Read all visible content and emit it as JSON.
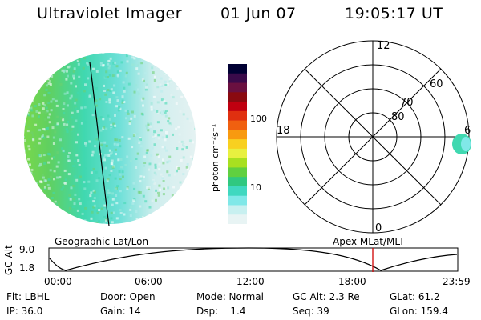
{
  "header": {
    "title": "Ultraviolet Imager",
    "date": "01 Jun 07",
    "time": "19:05:17 UT"
  },
  "colorbar": {
    "unit_label": "photon cm⁻²s⁻¹",
    "ticks": [
      "100",
      "10"
    ],
    "colors": [
      "#000033",
      "#3a0a4a",
      "#6a1040",
      "#8a0a10",
      "#c00010",
      "#e03010",
      "#f06010",
      "#f89a10",
      "#f8d020",
      "#e8f040",
      "#a8e020",
      "#60d040",
      "#30c880",
      "#40d8c0",
      "#80e8e8",
      "#c8f0f0",
      "#e8f4f4"
    ]
  },
  "polar_plot": {
    "lat_labels": [
      "80",
      "70",
      "60"
    ],
    "mlt_labels": [
      "12",
      "18",
      "6",
      "0"
    ]
  },
  "timeline": {
    "left_title": "Geographic Lat/Lon",
    "right_title": "Apex MLat/MLT",
    "y_label": "GC Alt",
    "y_ticks": [
      "9.0",
      "1.8"
    ],
    "x_ticks": [
      "00:00",
      "06:00",
      "12:00",
      "18:00",
      "23:59"
    ],
    "marker_color": "#d00000"
  },
  "info": {
    "row1": {
      "flt": "Flt: LBHL",
      "door": "Door: Open",
      "mode": "Mode: Normal",
      "gcalt": "GC Alt: 2.3 Re",
      "glat": "GLat: 61.2"
    },
    "row2": {
      "ip": "IP: 36.0",
      "gain": "Gain: 14",
      "dsp": "Dsp:    1.4",
      "seq": "Seq: 39",
      "glon": "GLon: 159.4"
    }
  }
}
